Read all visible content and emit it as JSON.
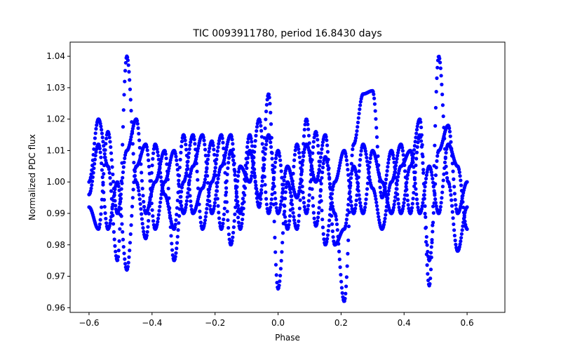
{
  "chart_data": {
    "type": "scatter",
    "title": "TIC 0093911780, period 16.8430 days",
    "xlabel": "Phase",
    "ylabel": "Normalized PDC flux",
    "xlim": [
      -0.66,
      0.72
    ],
    "ylim": [
      0.9585,
      1.0445
    ],
    "xticks": [
      -0.6,
      -0.4,
      -0.2,
      0.0,
      0.2,
      0.4,
      0.6
    ],
    "xtick_labels": [
      "−0.6",
      "−0.4",
      "−0.2",
      "0.0",
      "0.2",
      "0.4",
      "0.6"
    ],
    "yticks": [
      0.96,
      0.97,
      0.98,
      0.99,
      1.0,
      1.01,
      1.02,
      1.03,
      1.04
    ],
    "ytick_labels": [
      "0.96",
      "0.97",
      "0.98",
      "0.99",
      "1.00",
      "1.01",
      "1.02",
      "1.03",
      "1.04"
    ],
    "grid": false,
    "legend": false,
    "marker_color": "#0000ff",
    "x_range": [
      -0.6,
      0.6
    ],
    "series": [
      {
        "x": [
          -0.6,
          -0.57,
          -0.54,
          -0.51,
          -0.48,
          -0.45,
          -0.42,
          -0.39,
          -0.36,
          -0.33,
          -0.3,
          -0.27,
          -0.24,
          -0.21,
          -0.18,
          -0.15,
          -0.12,
          -0.09,
          -0.06,
          -0.03,
          0.0,
          0.03,
          0.06,
          0.09,
          0.12,
          0.15,
          0.18,
          0.21,
          0.24,
          0.27,
          0.3,
          0.33,
          0.36,
          0.39,
          0.42,
          0.45,
          0.48,
          0.51,
          0.54,
          0.57,
          0.6
        ],
        "y": [
          1.0,
          1.02,
          1.005,
          0.975,
          1.04,
          1.0,
          0.982,
          1.012,
          0.996,
          0.985,
          1.015,
          0.99,
          0.998,
          1.013,
          0.985,
          1.01,
          0.99,
          1.015,
          0.992,
          1.028,
          0.966,
          1.0,
          0.985,
          1.02,
          0.986,
          1.008,
          0.99,
          0.962,
          1.012,
          1.028,
          1.029,
          0.995,
          1.01,
          0.99,
          1.005,
          1.02,
          0.967,
          1.04,
          1.0,
          0.978,
          0.992
        ]
      },
      {
        "x": [
          -0.6,
          -0.57,
          -0.54,
          -0.51,
          -0.48,
          -0.45,
          -0.42,
          -0.39,
          -0.36,
          -0.33,
          -0.3,
          -0.27,
          -0.24,
          -0.21,
          -0.18,
          -0.15,
          -0.12,
          -0.09,
          -0.06,
          -0.03,
          0.0,
          0.03,
          0.06,
          0.09,
          0.12,
          0.15,
          0.18,
          0.21,
          0.24,
          0.27,
          0.3,
          0.33,
          0.36,
          0.39,
          0.42,
          0.45,
          0.48,
          0.51,
          0.54,
          0.57,
          0.6
        ],
        "y": [
          0.992,
          0.985,
          1.016,
          0.99,
          1.01,
          1.02,
          0.99,
          1.0,
          1.01,
          0.975,
          1.0,
          1.015,
          0.985,
          1.0,
          1.015,
          0.98,
          1.005,
          1.0,
          1.02,
          0.99,
          1.01,
          0.985,
          1.012,
          0.99,
          1.016,
          0.98,
          1.0,
          1.01,
          0.99,
          1.012,
          0.998,
          0.985,
          1.0,
          1.012,
          0.99,
          1.015,
          0.975,
          1.01,
          1.018,
          0.99,
          1.0
        ]
      },
      {
        "x": [
          -0.6,
          -0.57,
          -0.54,
          -0.51,
          -0.48,
          -0.45,
          -0.42,
          -0.39,
          -0.36,
          -0.33,
          -0.3,
          -0.27,
          -0.24,
          -0.21,
          -0.18,
          -0.15,
          -0.12,
          -0.09,
          -0.06,
          -0.03,
          0.0,
          0.03,
          0.06,
          0.09,
          0.12,
          0.15,
          0.18,
          0.21,
          0.24,
          0.27,
          0.3,
          0.33,
          0.36,
          0.39,
          0.42,
          0.45,
          0.48,
          0.51,
          0.54,
          0.57,
          0.6
        ],
        "y": [
          0.996,
          1.012,
          0.985,
          1.0,
          0.972,
          1.005,
          1.012,
          0.985,
          1.0,
          1.01,
          0.99,
          1.005,
          1.015,
          0.99,
          1.005,
          1.015,
          0.985,
          1.01,
          0.995,
          1.015,
          0.99,
          1.005,
          0.995,
          1.012,
          1.0,
          1.015,
          0.98,
          0.985,
          1.005,
          0.99,
          1.01,
          1.0,
          0.99,
          1.005,
          1.01,
          0.99,
          1.005,
          0.99,
          1.012,
          1.005,
          0.985
        ]
      }
    ]
  }
}
